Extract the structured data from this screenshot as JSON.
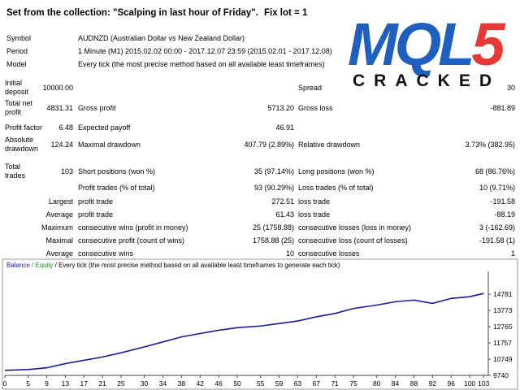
{
  "header": {
    "title": "Set from the collection: \"Scalping in last hour of Friday\".",
    "note": "Fix lot = 1"
  },
  "logo": {
    "text": "MQL",
    "accent": "5",
    "tagline": "CRACKED"
  },
  "info": [
    {
      "label": "Symbol",
      "value": "AUDNZD (Australian Dollar vs New Zealand Dollar)"
    },
    {
      "label": "Period",
      "value": "1 Minute (M1) 2015.02.02 00:00 - 2017.12.07 23:59 (2015.02.01 - 2017.12.08)"
    },
    {
      "label": "Model",
      "value": "Every tick (the most precise method based on all available least timeframes)"
    }
  ],
  "stats": [
    {
      "label": "Initial deposit",
      "value": "10000.00",
      "label3": "Spread",
      "value3": "30"
    },
    {
      "label": "Total net profit",
      "value": "4831.31",
      "label2": "Gross profit",
      "value2": "5713.20",
      "label3": "Gross loss",
      "value3": "-881.89"
    },
    {
      "label": "Profit factor",
      "value": "6.48",
      "label2": "Expected payoff",
      "value2": "46.91"
    },
    {
      "label": "Absolute drawdown",
      "value": "124.24",
      "label2": "Maximal drawdown",
      "value2": "407.79 (2.89%)",
      "label3": "Relative drawdown",
      "value3": "3.73% (382.95)"
    },
    {
      "label": "Total trades",
      "value": "103",
      "label2": "Short positions (won %)",
      "value2": "35 (97.14%)",
      "label3": "Long positions (won %)",
      "value3": "68 (86.76%)"
    },
    {
      "label2": "Profit trades (% of total)",
      "value2": "93 (90.29%)",
      "label3": "Loss trades (% of total)",
      "value3": "10 (9.71%)"
    },
    {
      "label": "Largest",
      "label2": "profit trade",
      "value2": "272.51",
      "label3": "loss trade",
      "value3": "-191.58"
    },
    {
      "label": "Average",
      "label2": "profit trade",
      "value2": "61.43",
      "label3": "loss trade",
      "value3": "-88.19"
    },
    {
      "label": "Maximum",
      "label2": "consecutive wins (profit in money)",
      "value2": "25 (1758.88)",
      "label3": "consecutive losses (loss in money)",
      "value3": "3 (-162.69)"
    },
    {
      "label": "Maximal",
      "label2": "consecutive profit (count of wins)",
      "value2": "1758.88 (25)",
      "label3": "consecutive loss (count of losses)",
      "value3": "-191.58 (1)"
    },
    {
      "label": "Average",
      "label2": "consecutive wins",
      "value2": "10",
      "label3": "consecutive losses",
      "value3": "1"
    }
  ],
  "chart_data": {
    "type": "line",
    "legend": [
      {
        "label": "Balance",
        "color": "#1a1a9a"
      },
      {
        "label": "/ Equity",
        "color": "#2e8b2e"
      },
      {
        "label": "/ Every tick (the most precise method based on all available least timeframes to generate each tick)",
        "color": "#000000"
      }
    ],
    "x": [
      0,
      5,
      9,
      13,
      17,
      21,
      25,
      30,
      34,
      38,
      42,
      46,
      50,
      55,
      59,
      63,
      67,
      71,
      75,
      80,
      84,
      88,
      92,
      96,
      100,
      103
    ],
    "series": [
      {
        "color": "#1a1a9a",
        "values": [
          10052,
          10104,
          10208,
          10468,
          10675,
          10883,
          11143,
          11507,
          11819,
          12130,
          12338,
          12546,
          12702,
          12806,
          12962,
          13118,
          13378,
          13586,
          13897,
          14105,
          14313,
          14417,
          14209,
          14521,
          14625,
          14833
        ]
      }
    ],
    "xlim": [
      0,
      104
    ],
    "xticks": [
      0,
      5,
      9,
      13,
      17,
      21,
      25,
      30,
      34,
      38,
      42,
      46,
      50,
      55,
      59,
      63,
      67,
      71,
      75,
      80,
      84,
      88,
      92,
      96,
      100,
      103
    ],
    "ylim": [
      9740,
      16200
    ],
    "yticks": [
      9740,
      10749,
      11757,
      12765,
      13773,
      14781
    ],
    "grid": false
  }
}
